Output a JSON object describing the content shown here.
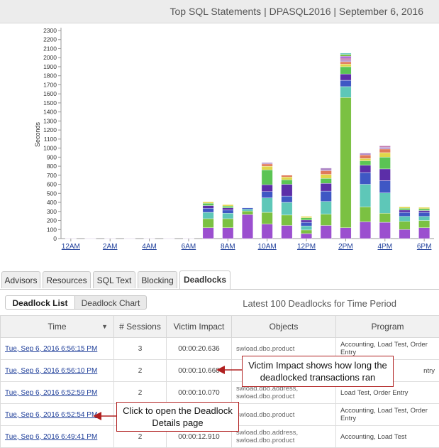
{
  "header": {
    "title": "Top SQL Statements | DPASQL2016 | September 6, 2016"
  },
  "chart_data": {
    "type": "bar",
    "stacked": true,
    "ylabel": "Seconds",
    "ylim": [
      0,
      2300
    ],
    "yticks": [
      0,
      100,
      200,
      300,
      400,
      500,
      600,
      700,
      800,
      900,
      1000,
      1100,
      1200,
      1300,
      1400,
      1500,
      1600,
      1700,
      1800,
      1900,
      2000,
      2100,
      2200,
      2300
    ],
    "xtick_labels": [
      "12AM",
      "2AM",
      "4AM",
      "6AM",
      "8AM",
      "10AM",
      "12PM",
      "2PM",
      "4PM",
      "6PM"
    ],
    "categories": [
      "12AM",
      "1AM",
      "2AM",
      "3AM",
      "4AM",
      "5AM",
      "6AM",
      "7AM",
      "8AM",
      "9AM",
      "10AM",
      "11AM",
      "12PM",
      "1PM",
      "2PM",
      "3PM",
      "4PM",
      "5PM",
      "6PM"
    ],
    "colors": [
      "#9b4fcf",
      "#7bc142",
      "#5ec7b8",
      "#3f57c4",
      "#5c2ea8",
      "#5bc454",
      "#e0d64a",
      "#e07a5a",
      "#b08ac8",
      "#c47ab0"
    ],
    "stacks": [
      [
        2
      ],
      [
        2
      ],
      [
        2
      ],
      [
        2
      ],
      [
        2
      ],
      [
        2
      ],
      [
        2
      ],
      [
        120,
        100,
        70,
        45,
        30,
        25,
        15
      ],
      [
        120,
        100,
        60,
        35,
        25,
        20,
        15
      ],
      [
        265,
        40,
        20,
        15
      ],
      [
        160,
        130,
        160,
        70,
        75,
        165,
        40,
        25,
        15
      ],
      [
        145,
        115,
        140,
        70,
        130,
        50,
        30,
        20
      ],
      [
        55,
        40,
        45,
        40,
        25,
        25,
        15
      ],
      [
        145,
        125,
        140,
        115,
        85,
        55,
        45,
        40,
        30
      ],
      [
        120,
        1440,
        120,
        70,
        70,
        80,
        30,
        25,
        20,
        20,
        20,
        20,
        15
      ],
      [
        185,
        165,
        250,
        130,
        80,
        50,
        25,
        40,
        20
      ],
      [
        180,
        100,
        225,
        135,
        130,
        130,
        50,
        40,
        20,
        15
      ],
      [
        100,
        90,
        55,
        45,
        25,
        20,
        15
      ],
      [
        120,
        80,
        45,
        45,
        20,
        20,
        15
      ]
    ]
  },
  "tabs": [
    "Advisors",
    "Resources",
    "SQL Text",
    "Blocking",
    "Deadlocks"
  ],
  "active_tab": "Deadlocks",
  "subtabs": {
    "list": "Deadlock List",
    "chart": "Deadlock Chart"
  },
  "period_label": "Latest 100 Deadlocks for Time Period",
  "table": {
    "columns": [
      "Time",
      "# Sessions",
      "Victim Impact",
      "Objects",
      "Program"
    ],
    "rows": [
      {
        "time": "Tue, Sep 6, 2016 6:56:15 PM",
        "sessions": "3",
        "impact": "00:00:20.636",
        "objects": "swload.dbo.product",
        "program": "Accounting, Load Test, Order Entry"
      },
      {
        "time": "Tue, Sep 6, 2016 6:56:10 PM",
        "sessions": "2",
        "impact": "00:00:10.660",
        "objects": "",
        "program": "ntry"
      },
      {
        "time": "Tue, Sep 6, 2016 6:52:59 PM",
        "sessions": "2",
        "impact": "00:00:10.070",
        "objects": "swload.dbo.address, swload.dbo.product",
        "program": "Load Test, Order Entry"
      },
      {
        "time": "Tue, Sep 6, 2016 6:52:54 PM",
        "sessions": "",
        "impact": "",
        "objects": "swload.dbo.product",
        "program": "Accounting, Load Test, Order Entry"
      },
      {
        "time": "Tue, Sep 6, 2016 6:49:41 PM",
        "sessions": "2",
        "impact": "00:00:12.910",
        "objects": "swload.dbo.address, swload.dbo.product",
        "program": "Accounting, Load Test"
      }
    ]
  },
  "callouts": {
    "victim": "Victim Impact shows how long the deadlocked transactions ran",
    "details": "Click to open the Deadlock Details page"
  }
}
